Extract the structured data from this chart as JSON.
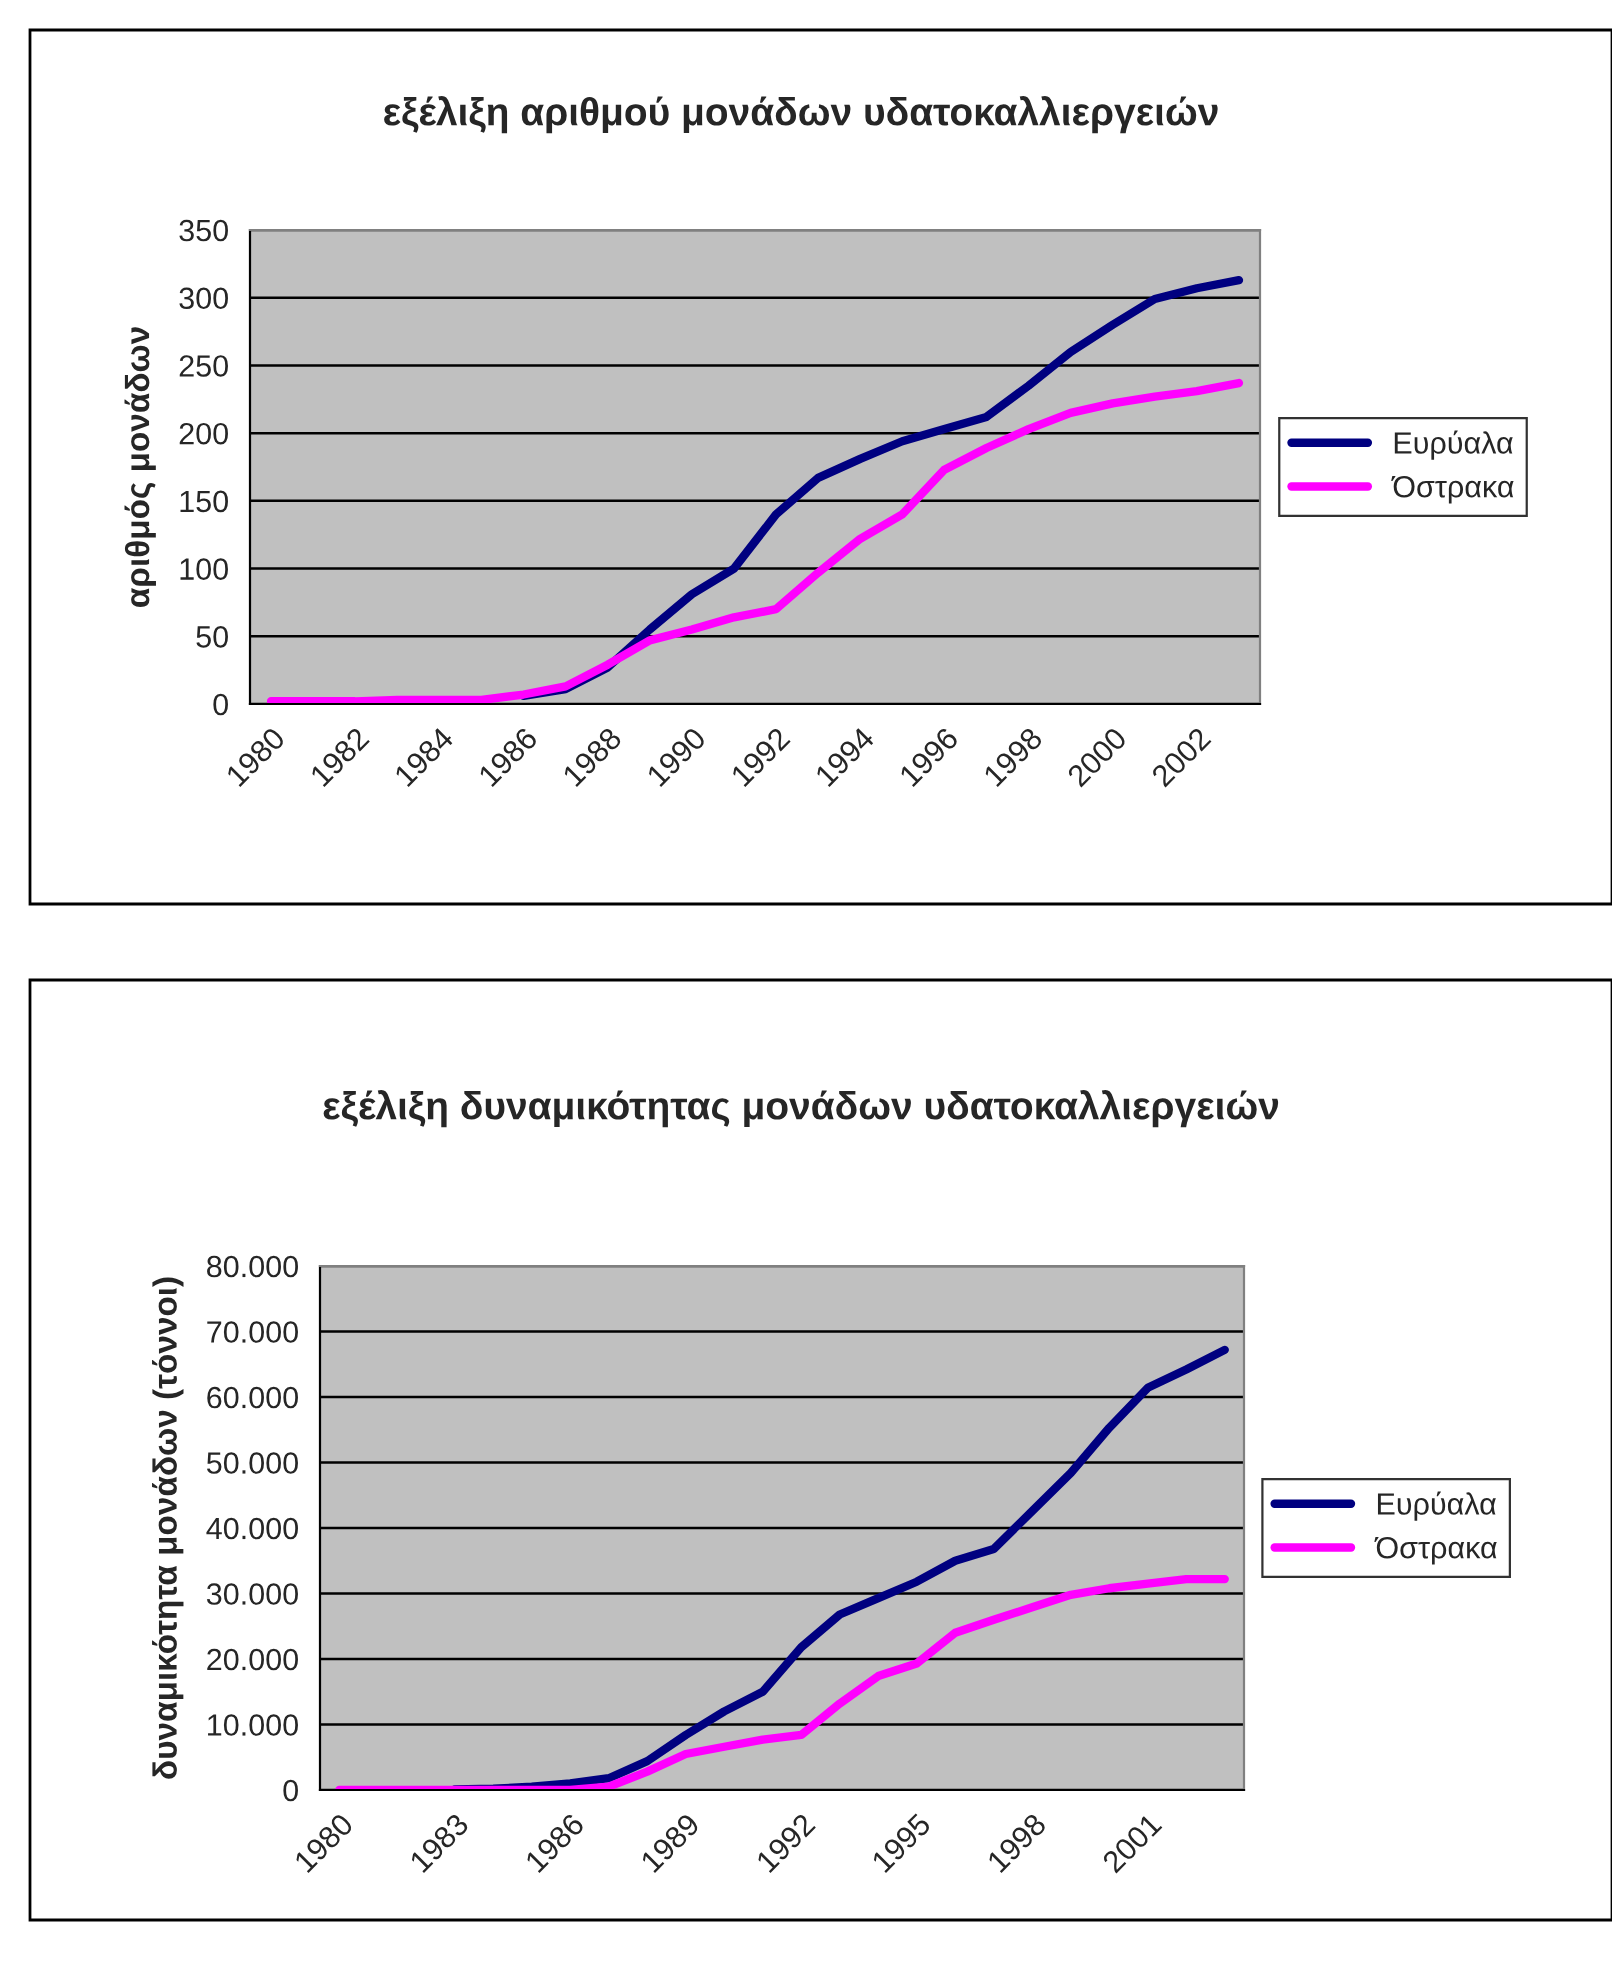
{
  "chart_data": [
    {
      "type": "line",
      "title": "εξέλιξη αριθμού μονάδων υδατοκαλλιεργειών",
      "ylabel": "αριθμός μονάδων",
      "categories": [
        "1980",
        null,
        "1982",
        null,
        "1984",
        null,
        "1986",
        null,
        "1988",
        null,
        "1990",
        null,
        "1992",
        null,
        "1994",
        null,
        "1996",
        null,
        "1998",
        null,
        "2000",
        null,
        "2002",
        null
      ],
      "series": [
        {
          "name": "Ευρύαλα",
          "color": "#000080",
          "values": [
            null,
            null,
            null,
            null,
            null,
            null,
            6,
            11,
            27,
            55,
            81,
            100,
            140,
            167,
            181,
            194,
            203,
            212,
            235,
            260,
            280,
            299,
            307,
            313
          ]
        },
        {
          "name": "Όστρακα",
          "color": "#ff00ff",
          "values": [
            2,
            2,
            2,
            3,
            3,
            3,
            7,
            13,
            29,
            47,
            55,
            64,
            70,
            97,
            122,
            140,
            173,
            189,
            203,
            215,
            222,
            227,
            231,
            237
          ]
        }
      ],
      "ylim": [
        0,
        350
      ],
      "yticks": [
        0,
        50,
        100,
        150,
        200,
        250,
        300,
        350
      ],
      "grid": "y",
      "legend": "right",
      "line_style": "solid",
      "marker": "none"
    },
    {
      "type": "line",
      "title": "εξέλιξη δυναμικότητας μονάδων υδατοκαλλιεργειών",
      "ylabel": "δυναμικότητα μονάδων (τόννοι)",
      "categories": [
        "1980",
        null,
        null,
        "1983",
        null,
        null,
        "1986",
        null,
        null,
        "1989",
        null,
        null,
        "1992",
        null,
        null,
        "1995",
        null,
        null,
        "1998",
        null,
        null,
        "2001",
        null,
        null
      ],
      "series": [
        {
          "name": "Ευρύαλα",
          "color": "#000080",
          "values": [
            null,
            null,
            null,
            100,
            200,
            500,
            1000,
            1800,
            4400,
            8400,
            12000,
            15000,
            21800,
            26800,
            29300,
            31800,
            35000,
            36800,
            42600,
            48400,
            55300,
            61400,
            64200,
            67200
          ]
        },
        {
          "name": "Όστρακα",
          "color": "#ff00ff",
          "values": [
            0,
            0,
            0,
            0,
            0,
            0,
            0,
            500,
            2800,
            5500,
            6600,
            7700,
            8400,
            13200,
            17400,
            19300,
            24000,
            26000,
            27900,
            29800,
            30800,
            31500,
            32200,
            32200
          ]
        }
      ],
      "ylim": [
        0,
        80000
      ],
      "yticks": [
        0,
        {
          "value": 10000,
          "label": "10.000"
        },
        {
          "value": 20000,
          "label": "20.000"
        },
        {
          "value": 30000,
          "label": "30.000"
        },
        {
          "value": 40000,
          "label": "40.000"
        },
        {
          "value": 50000,
          "label": "50.000"
        },
        {
          "value": 60000,
          "label": "60.000"
        },
        {
          "value": 70000,
          "label": "70.000"
        },
        {
          "value": 80000,
          "label": "80.000"
        }
      ],
      "grid": "y",
      "legend": "right",
      "line_style": "solid",
      "marker": "none"
    }
  ]
}
